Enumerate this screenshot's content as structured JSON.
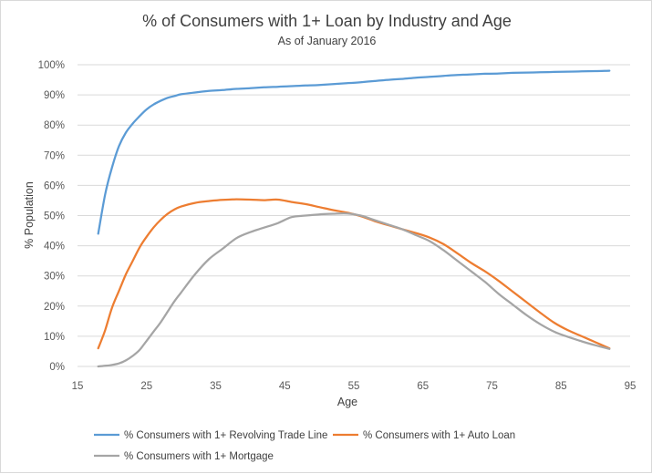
{
  "chart_data": {
    "type": "line",
    "title": "% of Consumers with 1+ Loan by Industry and Age",
    "subtitle": "As of January 2016",
    "xlabel": "Age",
    "ylabel": "% Population",
    "xlim": [
      15,
      95
    ],
    "ylim": [
      0,
      100
    ],
    "x_ticks": [
      15,
      25,
      35,
      45,
      55,
      65,
      75,
      85,
      95
    ],
    "y_ticks": [
      0,
      10,
      20,
      30,
      40,
      50,
      60,
      70,
      80,
      90,
      100
    ],
    "x_tick_labels": [
      "15",
      "25",
      "35",
      "45",
      "55",
      "65",
      "75",
      "85",
      "95"
    ],
    "y_tick_labels": [
      "0%",
      "10%",
      "20%",
      "30%",
      "40%",
      "50%",
      "60%",
      "70%",
      "80%",
      "90%",
      "100%"
    ],
    "grid": "horizontal",
    "legend_position": "bottom",
    "series": [
      {
        "name": "% Consumers with 1+ Revolving Trade Line",
        "color": "#5b9bd5",
        "x": [
          18,
          19,
          20,
          21,
          22,
          23,
          24,
          25,
          26,
          27,
          28,
          29,
          30,
          32,
          34,
          36,
          38,
          40,
          42,
          44,
          46,
          48,
          50,
          52,
          54,
          56,
          58,
          60,
          62,
          64,
          66,
          68,
          70,
          72,
          74,
          76,
          78,
          80,
          82,
          84,
          86,
          88,
          90,
          92
        ],
        "values": [
          44,
          57,
          66,
          73,
          77.5,
          80.5,
          83,
          85.2,
          86.8,
          88,
          89,
          89.6,
          90.2,
          90.8,
          91.3,
          91.6,
          92,
          92.2,
          92.5,
          92.7,
          92.9,
          93.1,
          93.3,
          93.6,
          93.9,
          94.2,
          94.6,
          95,
          95.3,
          95.7,
          96,
          96.3,
          96.6,
          96.8,
          97,
          97.1,
          97.3,
          97.4,
          97.5,
          97.6,
          97.7,
          97.8,
          97.9,
          98
        ]
      },
      {
        "name": "% Consumers with 1+ Auto Loan",
        "color": "#ed7d31",
        "x": [
          18,
          19,
          20,
          21,
          22,
          23,
          24,
          25,
          26,
          27,
          28,
          29,
          30,
          32,
          34,
          36,
          38,
          40,
          42,
          44,
          46,
          48,
          50,
          52,
          54,
          56,
          58,
          60,
          62,
          64,
          66,
          68,
          70,
          72,
          74,
          76,
          78,
          80,
          82,
          84,
          86,
          88,
          90,
          92
        ],
        "values": [
          6,
          12,
          19.5,
          25,
          30.5,
          35,
          39.5,
          43,
          46,
          48.5,
          50.5,
          52,
          53,
          54.2,
          54.8,
          55.2,
          55.4,
          55.3,
          55.1,
          55.3,
          54.5,
          53.8,
          52.8,
          51.8,
          51,
          49.8,
          48.2,
          46.8,
          45.5,
          44.2,
          42.7,
          40.5,
          37.5,
          34.3,
          31.5,
          28.3,
          24.8,
          21.3,
          17.8,
          14.5,
          12,
          10,
          8,
          6
        ]
      },
      {
        "name": "% Consumers with 1+ Mortgage",
        "color": "#a5a5a5",
        "x": [
          18,
          19,
          20,
          21,
          22,
          23,
          24,
          25,
          26,
          27,
          28,
          29,
          30,
          32,
          34,
          36,
          38,
          40,
          42,
          44,
          46,
          48,
          50,
          52,
          54,
          56,
          58,
          60,
          62,
          64,
          66,
          68,
          70,
          72,
          74,
          76,
          78,
          80,
          82,
          84,
          86,
          88,
          90,
          92
        ],
        "values": [
          0,
          0.2,
          0.5,
          1,
          2,
          3.5,
          5.5,
          8.5,
          11.5,
          14.5,
          18,
          21.5,
          24.5,
          30.5,
          35.5,
          39,
          42.5,
          44.5,
          46,
          47.5,
          49.5,
          50,
          50.4,
          50.6,
          50.7,
          50,
          48.5,
          47,
          45.5,
          43.5,
          41.5,
          38.5,
          35,
          31.5,
          28,
          24,
          20.5,
          17,
          14,
          11.5,
          9.8,
          8.3,
          7,
          5.8
        ]
      }
    ]
  }
}
